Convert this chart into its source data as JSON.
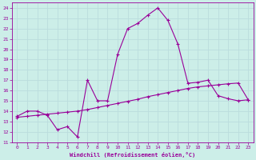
{
  "xlabel": "Windchill (Refroidissement éolien,°C)",
  "xlim": [
    -0.5,
    23.5
  ],
  "ylim": [
    11,
    24.5
  ],
  "yticks": [
    11,
    12,
    13,
    14,
    15,
    16,
    17,
    18,
    19,
    20,
    21,
    22,
    23,
    24
  ],
  "xticks": [
    0,
    1,
    2,
    3,
    4,
    5,
    6,
    7,
    8,
    9,
    10,
    11,
    12,
    13,
    14,
    15,
    16,
    17,
    18,
    19,
    20,
    21,
    22,
    23
  ],
  "bg_color": "#cceee8",
  "line_color": "#990099",
  "grid_color": "#bbdddd",
  "series1_x": [
    0,
    1,
    2,
    3,
    4,
    5,
    6,
    7,
    8,
    9,
    10,
    11,
    12,
    13,
    14,
    15,
    16,
    17,
    18,
    19,
    20,
    21,
    22,
    23
  ],
  "series1_y": [
    13.5,
    14.0,
    14.0,
    13.6,
    12.2,
    12.5,
    11.5,
    17.0,
    15.0,
    15.0,
    19.5,
    22.0,
    22.5,
    23.3,
    24.0,
    22.8,
    20.5,
    16.7,
    16.8,
    17.0,
    15.5,
    15.2,
    15.0,
    15.1
  ],
  "series2_x": [
    0,
    1,
    2,
    3,
    4,
    5,
    6,
    7,
    8,
    9,
    10,
    11,
    12,
    13,
    14,
    15,
    16,
    17,
    18,
    19,
    20,
    21,
    22,
    23
  ],
  "series2_y": [
    13.4,
    13.5,
    13.6,
    13.7,
    13.8,
    13.9,
    14.0,
    14.15,
    14.35,
    14.55,
    14.75,
    14.95,
    15.15,
    15.4,
    15.6,
    15.8,
    16.0,
    16.2,
    16.35,
    16.45,
    16.55,
    16.65,
    16.72,
    15.1
  ]
}
